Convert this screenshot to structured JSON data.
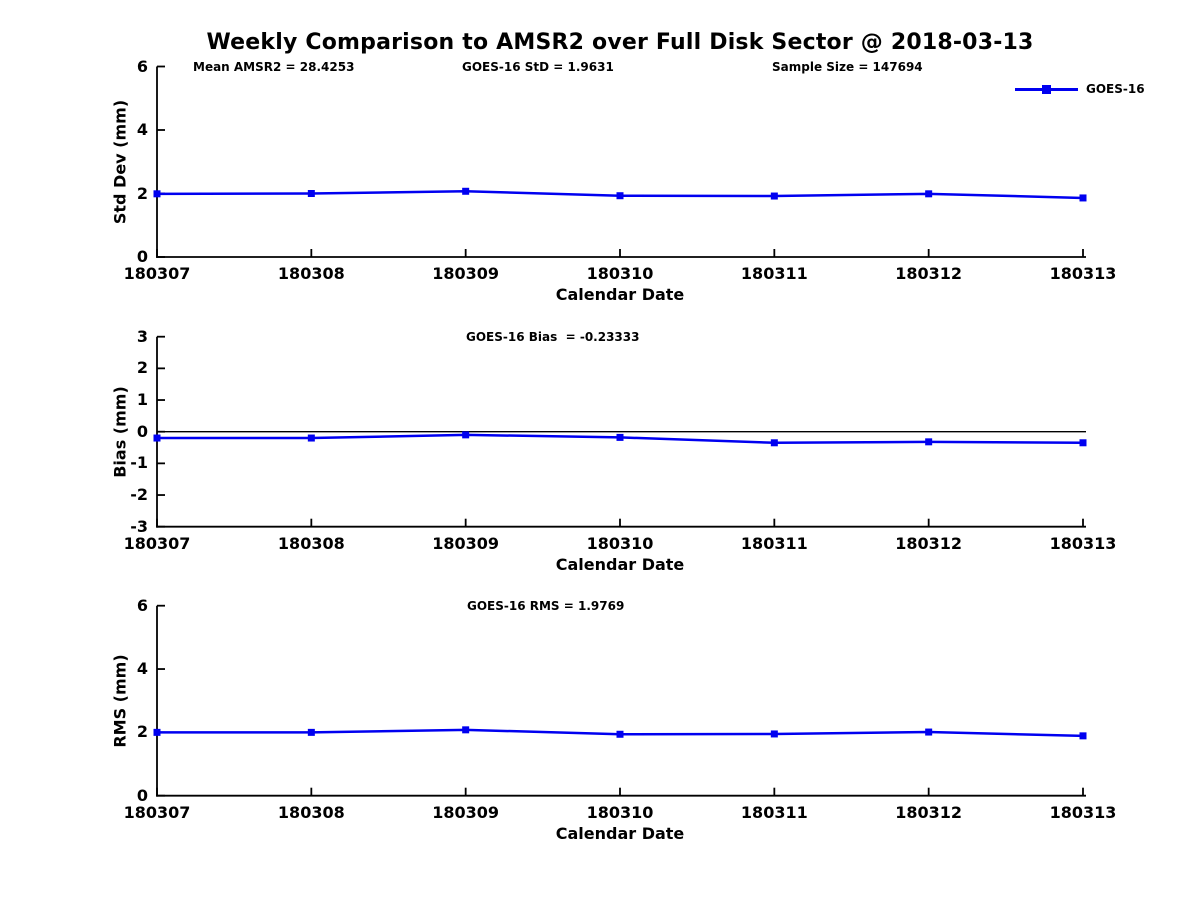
{
  "figure": {
    "title": "Weekly Comparison to AMSR2 over Full Disk Sector @ 2018-03-13",
    "background_color": "#ffffff",
    "line_color": "#0000f0",
    "axis_color": "#000000"
  },
  "chart_data": [
    {
      "type": "line",
      "annotations": [
        "Mean AMSR2 = 28.4253",
        "GOES-16 StD = 1.9631",
        "Sample Size = 147694"
      ],
      "categories": [
        "180307",
        "180308",
        "180309",
        "180310",
        "180311",
        "180312",
        "180313"
      ],
      "series": [
        {
          "name": "GOES-16",
          "values": [
            1.99,
            2.0,
            2.07,
            1.93,
            1.92,
            1.99,
            1.86
          ],
          "color": "#0000f0",
          "marker": "square"
        }
      ],
      "xlabel": "Calendar Date",
      "ylabel": "Std Dev (mm)",
      "ylim": [
        0,
        6
      ],
      "yticks": [
        0,
        2,
        4,
        6
      ],
      "grid": false,
      "legend_position": "upper-right-outside",
      "zero_line": false
    },
    {
      "type": "line",
      "title": "GOES-16 Bias  = -0.23333",
      "categories": [
        "180307",
        "180308",
        "180309",
        "180310",
        "180311",
        "180312",
        "180313"
      ],
      "series": [
        {
          "name": "GOES-16",
          "values": [
            -0.2,
            -0.2,
            -0.1,
            -0.18,
            -0.35,
            -0.32,
            -0.35
          ],
          "color": "#0000f0",
          "marker": "square"
        }
      ],
      "xlabel": "Calendar Date",
      "ylabel": "Bias (mm)",
      "ylim": [
        -3,
        3
      ],
      "yticks": [
        3,
        2,
        1,
        0,
        -1,
        -2,
        -3
      ],
      "grid": false,
      "zero_line": true
    },
    {
      "type": "line",
      "title": "GOES-16 RMS = 1.9769",
      "categories": [
        "180307",
        "180308",
        "180309",
        "180310",
        "180311",
        "180312",
        "180313"
      ],
      "series": [
        {
          "name": "GOES-16",
          "values": [
            2.0,
            2.0,
            2.08,
            1.94,
            1.95,
            2.01,
            1.89
          ],
          "color": "#0000f0",
          "marker": "square"
        }
      ],
      "xlabel": "Calendar Date",
      "ylabel": "RMS (mm)",
      "ylim": [
        0,
        6
      ],
      "yticks": [
        0,
        2,
        4,
        6
      ],
      "grid": false,
      "zero_line": false
    }
  ]
}
